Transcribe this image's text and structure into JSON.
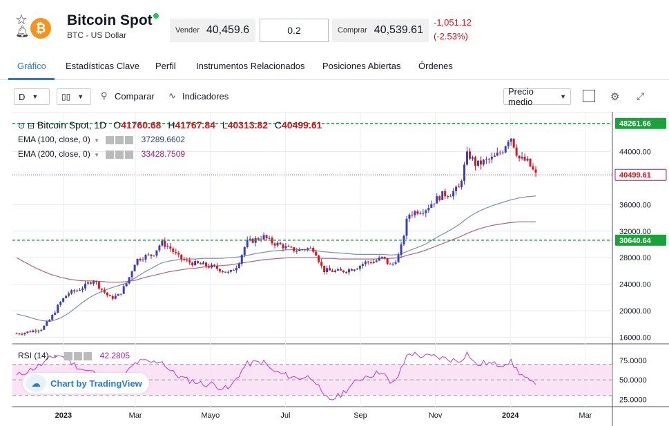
{
  "header": {
    "title": "Bitcoin Spot",
    "subtitle": "BTC - US Dollar",
    "coin_symbol": "₿",
    "sell_label": "Vender",
    "sell_value": "40,459.6",
    "quantity": "0.2",
    "buy_label": "Comprar",
    "buy_value": "40,539.61",
    "change_abs": "-1,051.12",
    "change_pct": "(-2.53%)"
  },
  "tabs": [
    {
      "label": "Gráfico",
      "active": true
    },
    {
      "label": "Estadísticas Clave"
    },
    {
      "label": "Perfil"
    },
    {
      "label": "Instrumentos Relacionados"
    },
    {
      "label": "Posiciones Abiertas"
    },
    {
      "label": "Órdenes"
    }
  ],
  "toolbar": {
    "interval": "D",
    "compare_label": "Comparar",
    "indicators_label": "Indicadores",
    "price_type": "Precio medio"
  },
  "legend": {
    "symbol": "Bitcoin Spot, 1D",
    "o_label": "O",
    "o_value": "41760.68",
    "h_label": "H",
    "h_value": "41767.84",
    "l_label": "L",
    "l_value": "40313.82",
    "c_label": "C",
    "c_value": "40499.61",
    "ema100_label": "EMA (100, close, 0)",
    "ema100_value": "37289.6602",
    "ema200_label": "EMA (200, close, 0)",
    "ema200_value": "33428.7509",
    "rsi_label": "RSI (14)",
    "rsi_value": "42.2805"
  },
  "badge": "Chart by TradingView",
  "colors": {
    "up": "#3b3dbf",
    "down": "#e0121c",
    "ema100": "#7a8db0",
    "ema200": "#b0647c",
    "rsi": "#c03cc0",
    "accent": "#1c7ce0",
    "green_line": "#1aa33a",
    "price_line": "#d100a0"
  },
  "chart_data": {
    "type": "candlestick",
    "price_axis": {
      "ticks": [
        "16000.00",
        "20000.00",
        "24000.00",
        "28000.00",
        "32000.00",
        "36000.00",
        "44000.00"
      ],
      "ylim": [
        15000,
        50000
      ]
    },
    "x_ticks": [
      "2023",
      "Mar",
      "Mayo",
      "Jul",
      "Sep",
      "Nov",
      "2024",
      "Mar"
    ],
    "price_labels": [
      {
        "value": 48261.66,
        "text": "48261.66",
        "kind": "green"
      },
      {
        "value": 40499.61,
        "text": "40499.61",
        "kind": "last"
      },
      {
        "value": 30640.64,
        "text": "30640.64",
        "kind": "green"
      }
    ],
    "close_path": [
      16550,
      16700,
      17000,
      17300,
      18800,
      21000,
      22600,
      23000,
      23700,
      24700,
      23200,
      21900,
      22300,
      24300,
      27600,
      28200,
      28400,
      30300,
      29500,
      28100,
      27400,
      27100,
      26900,
      26600,
      26200,
      25600,
      27000,
      30300,
      30700,
      31200,
      30300,
      29900,
      29300,
      29100,
      29400,
      29300,
      26100,
      26000,
      25900,
      26200,
      26600,
      27300,
      27400,
      28000,
      26700,
      28500,
      34500,
      35000,
      35300,
      36500,
      37500,
      37700,
      38500,
      43800,
      42000,
      42500,
      43000,
      44000,
      46500,
      43000,
      42500,
      40500
    ],
    "ema100_path": [
      19500,
      19200,
      18800,
      18500,
      18400,
      18800,
      19500,
      20500,
      21500,
      22300,
      22900,
      23400,
      23800,
      24200,
      25000,
      25800,
      26500,
      27200,
      27500,
      27700,
      27800,
      27800,
      27900,
      27900,
      27900,
      28000,
      28100,
      28300,
      28600,
      28800,
      29000,
      29100,
      29200,
      29200,
      29200,
      29100,
      28900,
      28800,
      28700,
      28600,
      28500,
      28500,
      28500,
      28500,
      28400,
      28500,
      29000,
      29500,
      30000,
      30800,
      31500,
      32200,
      33000,
      34000,
      34800,
      35400,
      35900,
      36300,
      36700,
      37000,
      37200,
      37300
    ],
    "ema200_path": [
      28000,
      27300,
      26600,
      26000,
      25500,
      25100,
      24800,
      24600,
      24500,
      24500,
      24400,
      24300,
      24300,
      24400,
      24600,
      25000,
      25300,
      25600,
      25900,
      26100,
      26300,
      26400,
      26600,
      26700,
      26800,
      26900,
      27100,
      27300,
      27500,
      27700,
      27800,
      27900,
      28000,
      28000,
      28000,
      28000,
      27900,
      27900,
      27800,
      27800,
      27800,
      27800,
      27800,
      27900,
      27900,
      28000,
      28400,
      28700,
      29100,
      29600,
      30100,
      30600,
      31100,
      31700,
      32200,
      32600,
      32900,
      33100,
      33300,
      33400,
      33400,
      33400
    ],
    "rsi": {
      "ticks": [
        "75.0000",
        "50.0000",
        "25.0000"
      ],
      "ylim": [
        20,
        90
      ],
      "bands": [
        70,
        50,
        30
      ],
      "values": [
        55,
        60,
        65,
        70,
        78,
        82,
        76,
        68,
        62,
        60,
        52,
        38,
        42,
        60,
        72,
        74,
        72,
        75,
        62,
        55,
        50,
        48,
        44,
        45,
        40,
        38,
        55,
        70,
        72,
        73,
        62,
        58,
        55,
        52,
        54,
        52,
        28,
        25,
        30,
        40,
        48,
        55,
        57,
        62,
        42,
        58,
        85,
        82,
        80,
        80,
        78,
        76,
        74,
        85,
        68,
        72,
        70,
        70,
        74,
        60,
        50,
        42
      ]
    }
  }
}
